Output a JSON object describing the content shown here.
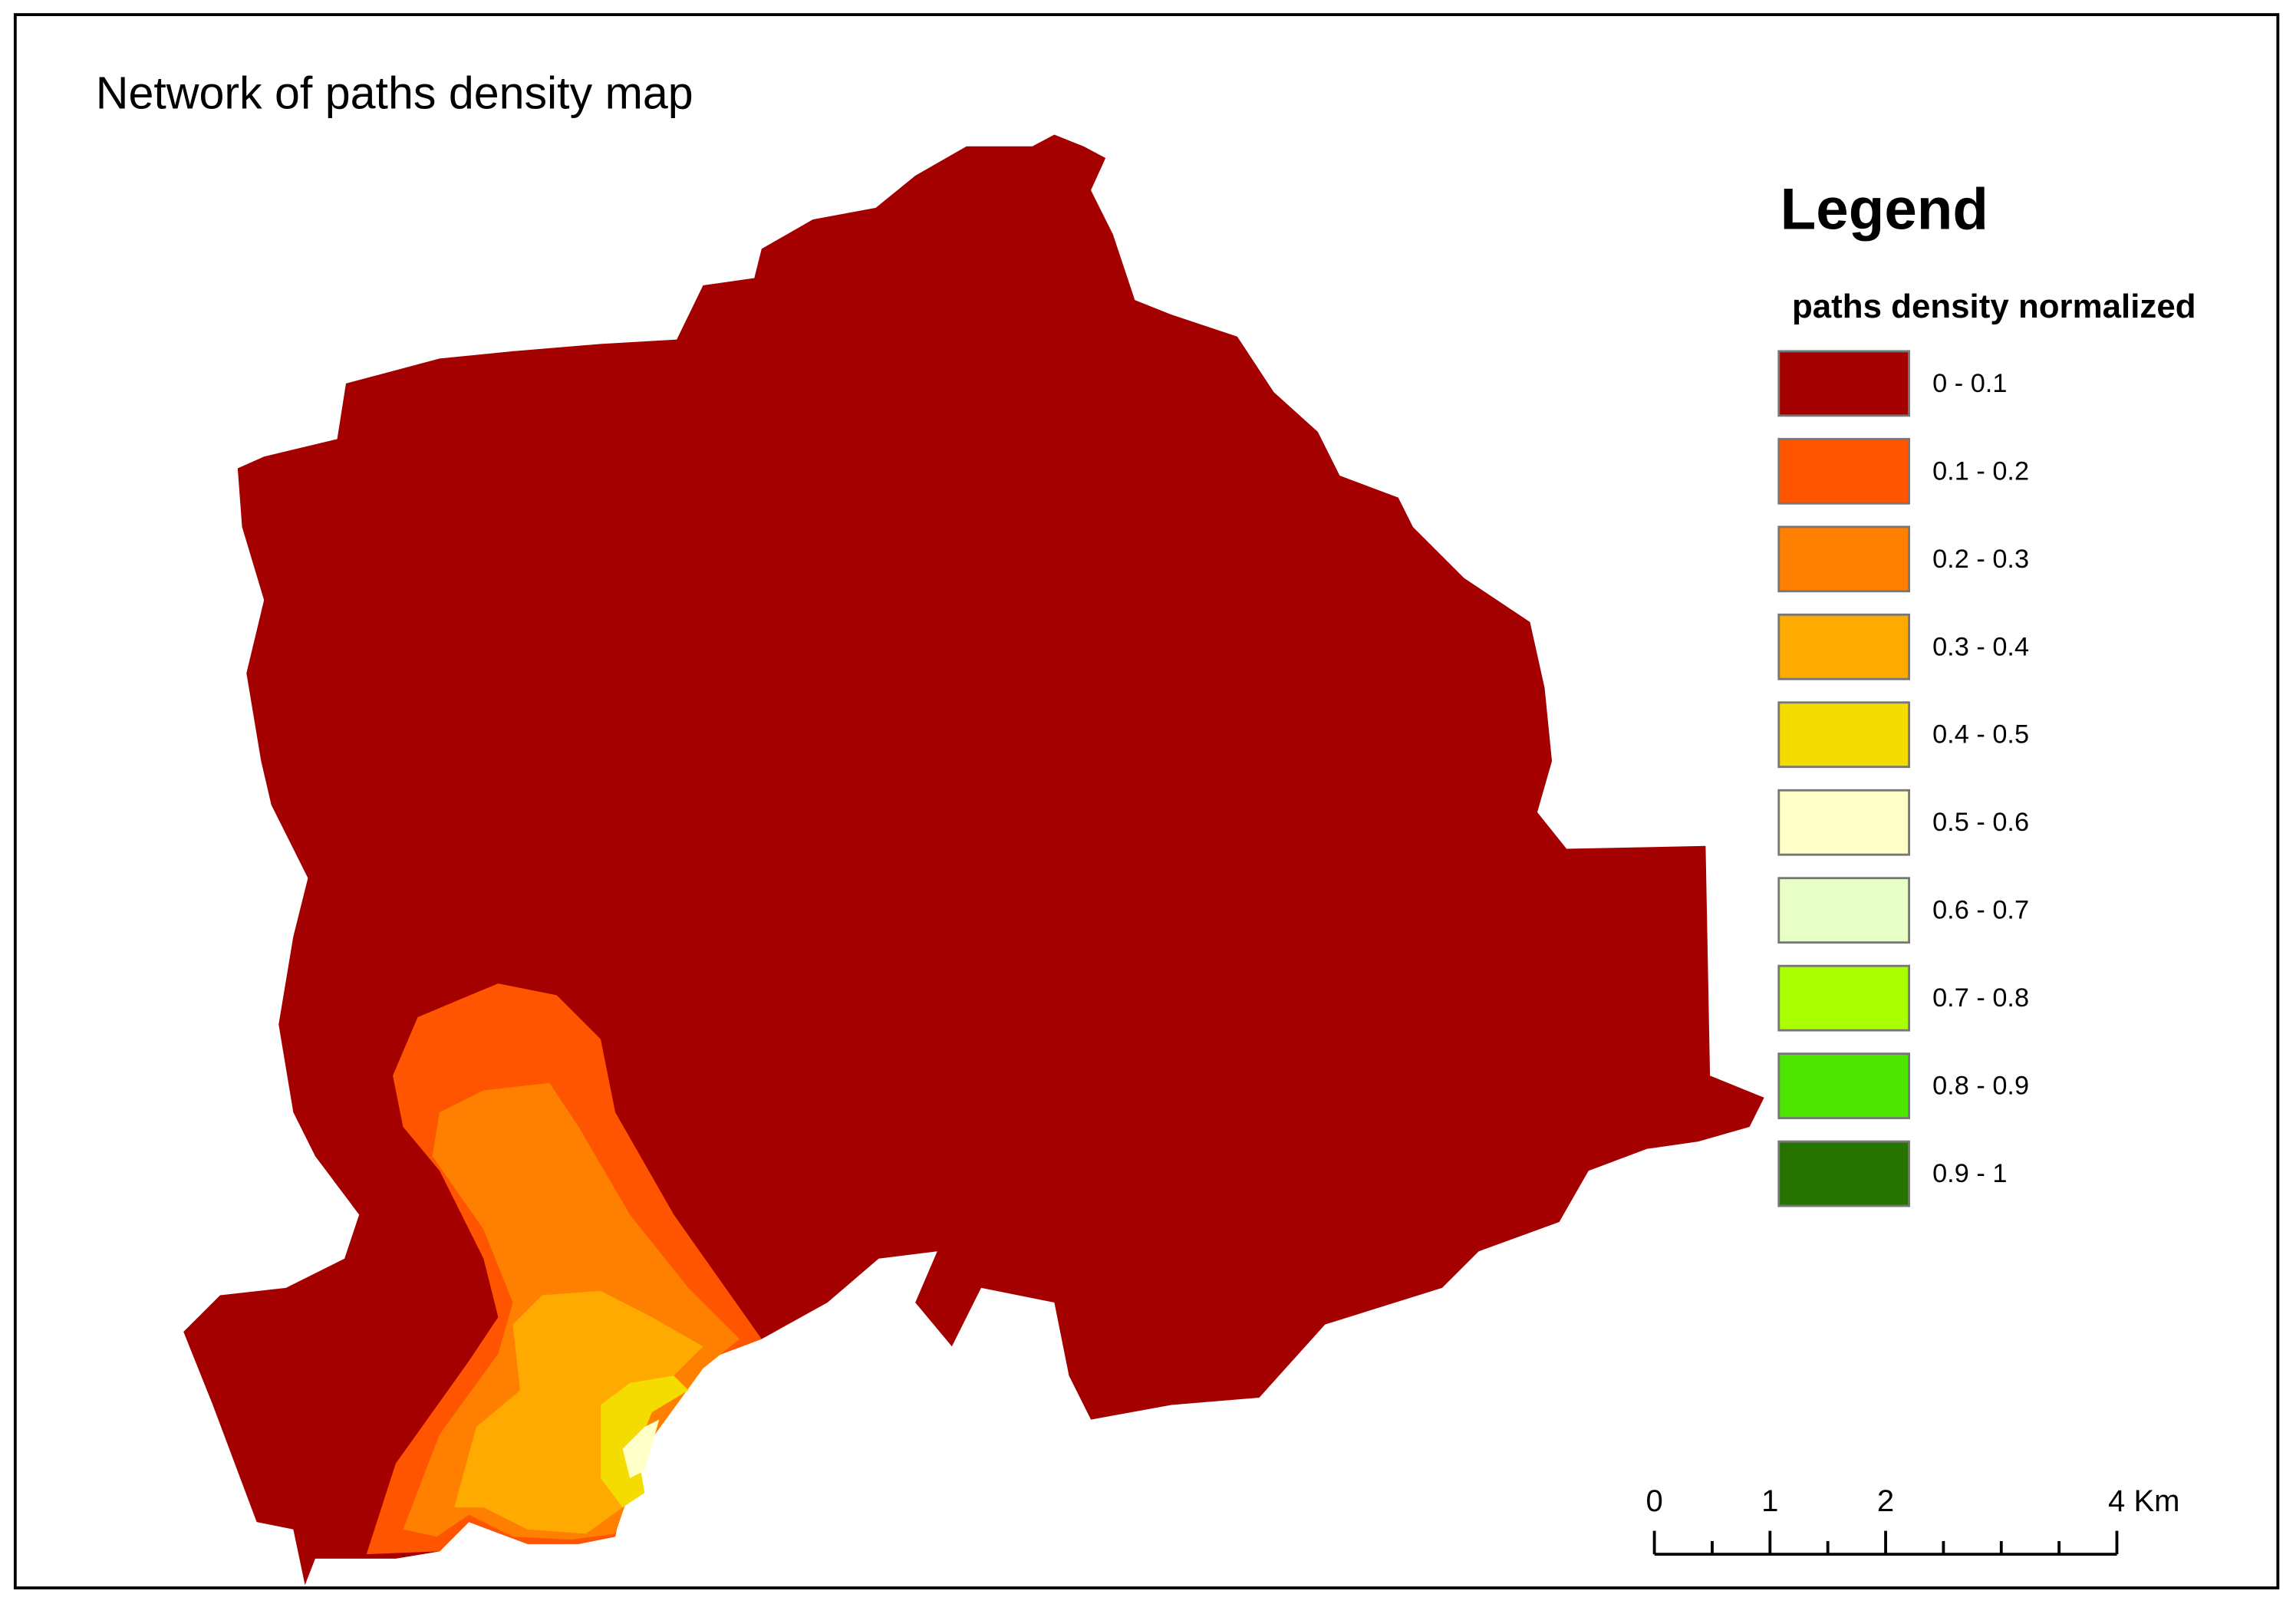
{
  "title": "Network of paths density map",
  "legend": {
    "heading": "Legend",
    "subtitle": "paths density normalized",
    "items": [
      {
        "label": "0 - 0.1",
        "color": "#a50000"
      },
      {
        "label": "0.1 - 0.2",
        "color": "#ff5500"
      },
      {
        "label": "0.2 - 0.3",
        "color": "#ff7f00"
      },
      {
        "label": "0.3 - 0.4",
        "color": "#ffaa00"
      },
      {
        "label": "0.4 - 0.5",
        "color": "#f5dc00"
      },
      {
        "label": "0.5 - 0.6",
        "color": "#ffffc8"
      },
      {
        "label": "0.6 - 0.7",
        "color": "#e8ffc8"
      },
      {
        "label": "0.7 - 0.8",
        "color": "#aaff00"
      },
      {
        "label": "0.8 - 0.9",
        "color": "#4ce600"
      },
      {
        "label": "0.9 - 1",
        "color": "#267300"
      }
    ]
  },
  "scale_bar": {
    "labels": [
      "0",
      "1",
      "2",
      "4 Km"
    ]
  }
}
